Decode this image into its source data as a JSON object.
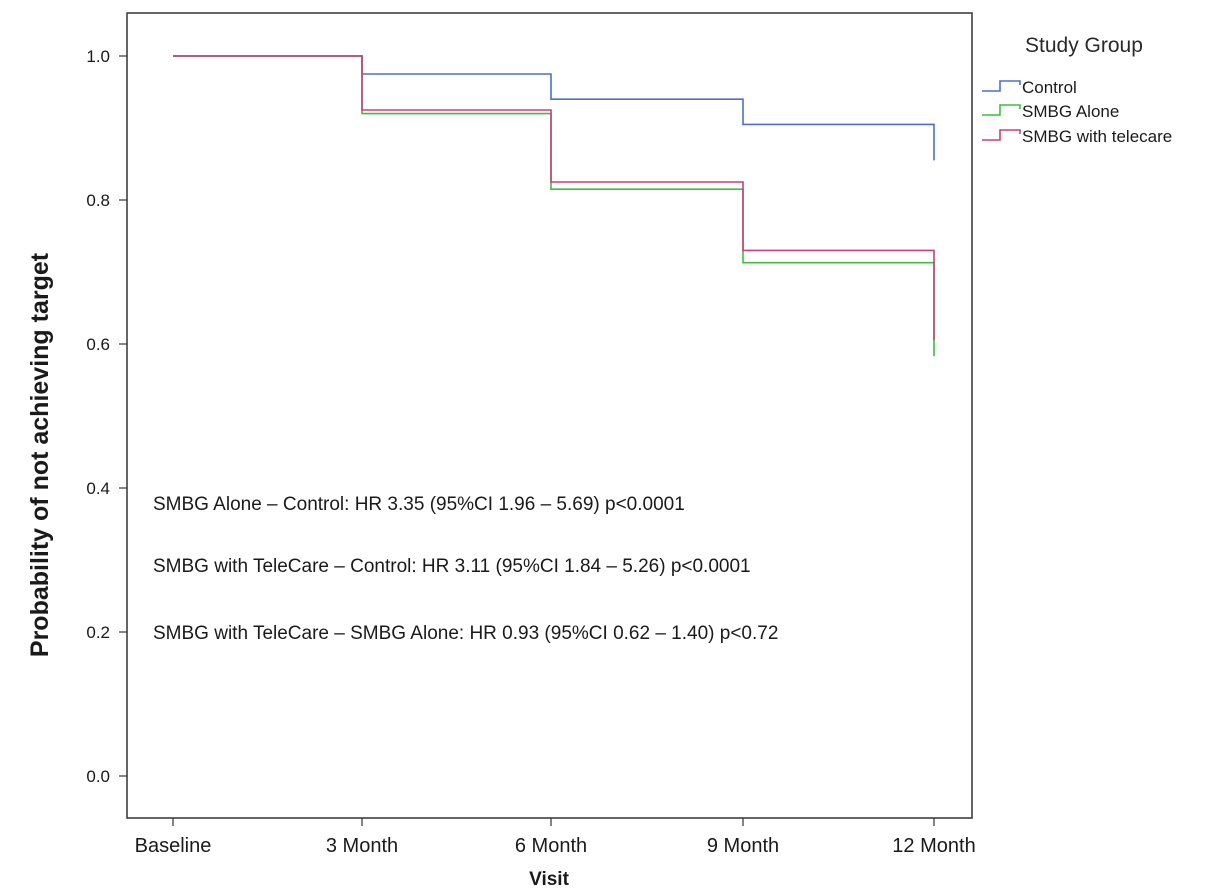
{
  "chart_data": {
    "type": "line",
    "step": true,
    "title": "",
    "xlabel": "Visit",
    "ylabel": "Probability of not achieving target",
    "categories": [
      "Baseline",
      "3 Month",
      "6 Month",
      "9 Month",
      "12 Month"
    ],
    "ylim": [
      0.0,
      1.0
    ],
    "yticks": [
      "0.0",
      "0.2",
      "0.4",
      "0.6",
      "0.8",
      "1.0"
    ],
    "ytick_values": [
      0.0,
      0.2,
      0.4,
      0.6,
      0.8,
      1.0
    ],
    "grid": false,
    "legend": {
      "title": "Study Group",
      "placement": "outside-right-top"
    },
    "series": [
      {
        "name": "Control",
        "color": "#4f6fc8",
        "values": [
          1.0,
          0.975,
          0.94,
          0.905,
          0.902
        ],
        "end_drop": 0.855
      },
      {
        "name": "SMBG Alone",
        "color": "#3cbf3c",
        "values": [
          1.0,
          0.92,
          0.815,
          0.713,
          0.713
        ],
        "end_drop": 0.583
      },
      {
        "name": "SMBG with telecare",
        "color": "#c8417a",
        "values": [
          1.0,
          0.925,
          0.825,
          0.73,
          0.73
        ],
        "end_drop": 0.605
      }
    ],
    "annotations": [
      "SMBG Alone – Control: HR 3.35 (95%CI 1.96 – 5.69) p<0.0001",
      "SMBG with TeleCare – Control: HR 3.11 (95%CI 1.84 – 5.26) p<0.0001",
      "SMBG with TeleCare – SMBG Alone: HR 0.93 (95%CI 0.62 – 1.40) p<0.72"
    ]
  }
}
